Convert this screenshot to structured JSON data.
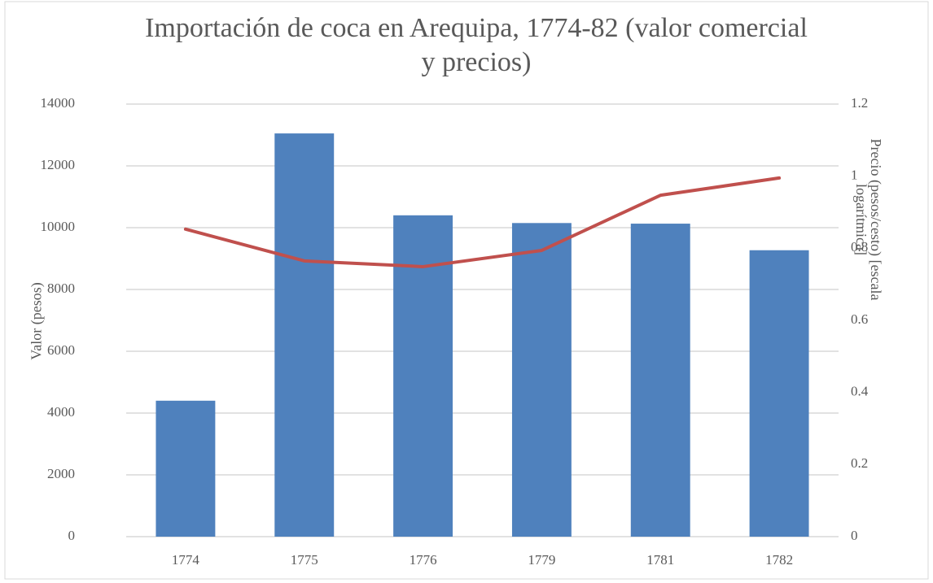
{
  "chart_data": {
    "type": "bar_line",
    "title": "Importación de coca en Arequipa, 1774-82 (valor comercial y precios)",
    "ylabel": "Valor (pesos)",
    "y2label": "Precio (pesos/cesto) [escala logarítmica]",
    "categories": [
      "1774",
      "1775",
      "1776",
      "1779",
      "1781",
      "1782"
    ],
    "series": [
      {
        "type": "bar",
        "color": "#4f81bd",
        "values": [
          4400,
          13050,
          10400,
          10150,
          10130,
          9270
        ]
      },
      {
        "type": "line",
        "axis": "y2",
        "color": "#c0504d",
        "values": [
          0.853,
          0.765,
          0.749,
          0.794,
          0.947,
          0.995
        ]
      }
    ],
    "ylim": [
      0,
      14000
    ],
    "yticks": [
      0,
      2000,
      4000,
      6000,
      8000,
      10000,
      12000,
      14000
    ],
    "y2lim": [
      0,
      1.2
    ],
    "y2ticks": [
      0,
      0.2,
      0.4,
      0.6,
      0.8,
      1,
      1.2
    ],
    "grid": true
  }
}
